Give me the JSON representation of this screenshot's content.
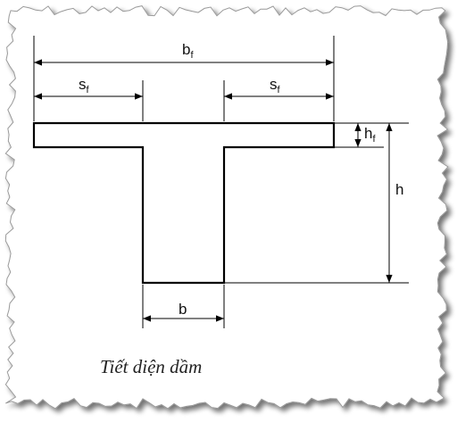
{
  "diagram": {
    "labels": {
      "bf": {
        "main": "b",
        "sub": "f"
      },
      "sf_left": {
        "main": "s",
        "sub": "f"
      },
      "sf_right": {
        "main": "s",
        "sub": "f"
      },
      "hf": {
        "main": "h",
        "sub": "f"
      },
      "h": {
        "main": "h"
      },
      "b": {
        "main": "b"
      }
    },
    "caption": "Tiết diện dầm",
    "colors": {
      "paper": "#ffffff",
      "ink": "#000000",
      "torn_edge_shadow": "#8a8a8a"
    }
  }
}
